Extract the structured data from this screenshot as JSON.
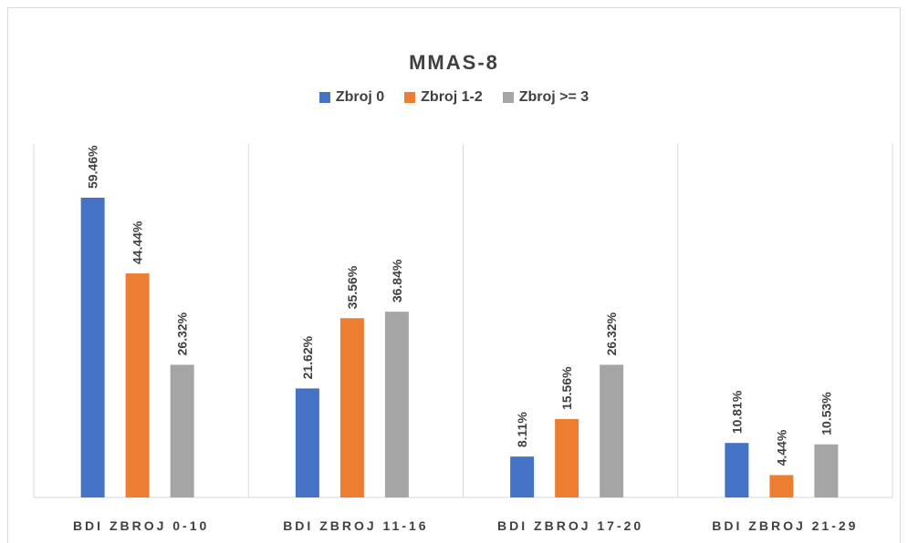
{
  "chart_data": {
    "type": "bar",
    "title": "MMAS-8",
    "categories": [
      "BDI ZBROJ 0-10",
      "BDI ZBROJ 11-16",
      "BDI ZBROJ 17-20",
      "BDI ZBROJ 21-29"
    ],
    "series": [
      {
        "name": "Zbroj 0",
        "color": "#4472c4",
        "values": [
          59.46,
          21.62,
          8.11,
          10.81
        ],
        "labels": [
          "59.46%",
          "21.62%",
          "8.11%",
          "10.81%"
        ]
      },
      {
        "name": "Zbroj 1-2",
        "color": "#ed7d31",
        "values": [
          44.44,
          35.56,
          15.56,
          4.44
        ],
        "labels": [
          "44.44%",
          "35.56%",
          "15.56%",
          "4.44%"
        ]
      },
      {
        "name": "Zbroj >= 3",
        "color": "#a5a5a5",
        "values": [
          26.32,
          36.84,
          26.32,
          10.53
        ],
        "labels": [
          "26.32%",
          "36.84%",
          "26.32%",
          "10.53%"
        ]
      }
    ],
    "ylim": [
      0,
      70
    ],
    "legend_position": "top",
    "grid": "vertical-category-separators",
    "xlabel": "",
    "ylabel": ""
  }
}
